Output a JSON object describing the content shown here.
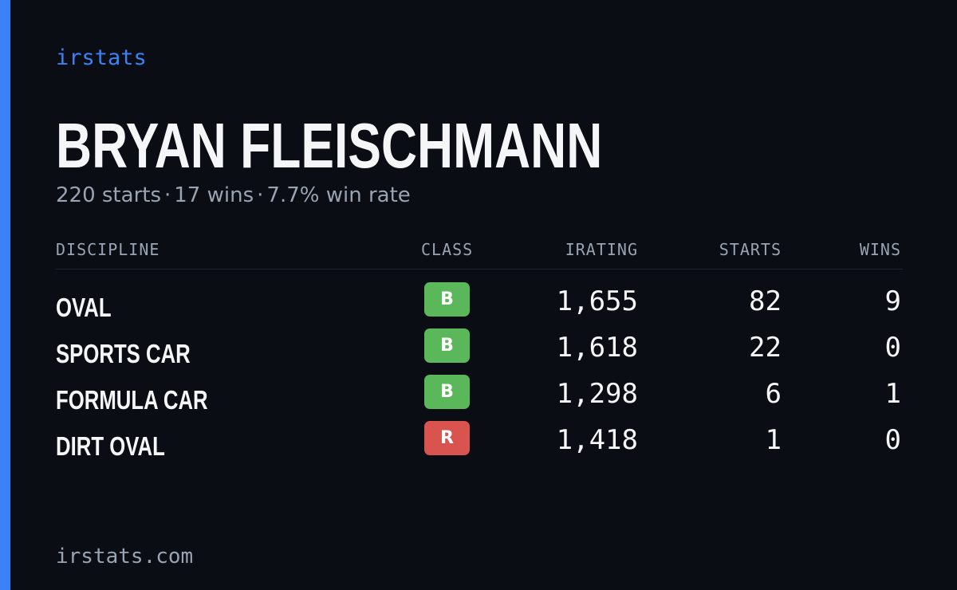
{
  "brand": "irstats",
  "player": {
    "name": "BRYAN FLEISCHMANN",
    "starts_text": "220 starts",
    "wins_text": "17 wins",
    "win_rate_text": "7.7% win rate",
    "separator": "·"
  },
  "table": {
    "headers": {
      "discipline": "DISCIPLINE",
      "class": "CLASS",
      "irating": "IRATING",
      "starts": "STARTS",
      "wins": "WINS"
    },
    "rows": [
      {
        "discipline": "OVAL",
        "class": "B",
        "irating": "1,655",
        "starts": "82",
        "wins": "9"
      },
      {
        "discipline": "SPORTS CAR",
        "class": "B",
        "irating": "1,618",
        "starts": "22",
        "wins": "0"
      },
      {
        "discipline": "FORMULA CAR",
        "class": "B",
        "irating": "1,298",
        "starts": "6",
        "wins": "1"
      },
      {
        "discipline": "DIRT OVAL",
        "class": "R",
        "irating": "1,418",
        "starts": "1",
        "wins": "0"
      }
    ]
  },
  "class_colors": {
    "B": "#5bb85a",
    "R": "#d9534f"
  },
  "colors": {
    "accent": "#3b82f6",
    "background": "#0a0d14"
  },
  "footer": "irstats.com"
}
